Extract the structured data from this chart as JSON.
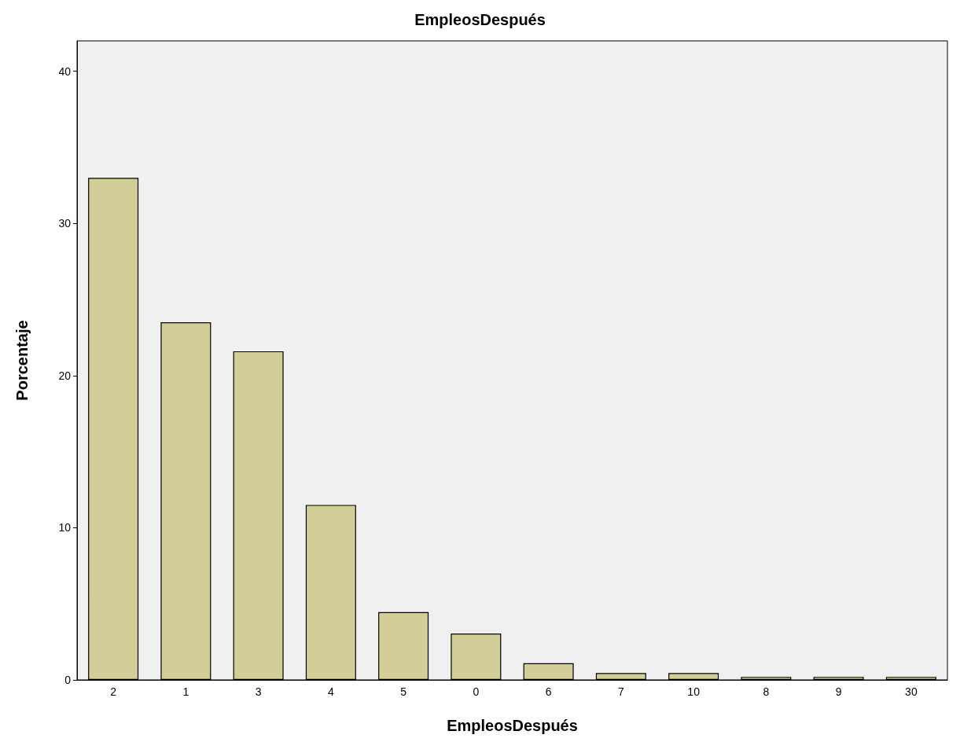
{
  "chart_data": {
    "type": "bar",
    "title": "EmpleosDespués",
    "xlabel": "EmpleosDespués",
    "ylabel": "Porcentaje",
    "categories": [
      "2",
      "1",
      "3",
      "4",
      "5",
      "0",
      "6",
      "7",
      "10",
      "8",
      "9",
      "30"
    ],
    "values": [
      33.0,
      23.5,
      21.6,
      11.5,
      4.45,
      3.05,
      1.1,
      0.45,
      0.45,
      0.2,
      0.2,
      0.2
    ],
    "color": "#d3ce97",
    "ylim": [
      0,
      42
    ],
    "yticks": [
      0,
      10,
      20,
      30,
      40
    ],
    "grid": false
  }
}
